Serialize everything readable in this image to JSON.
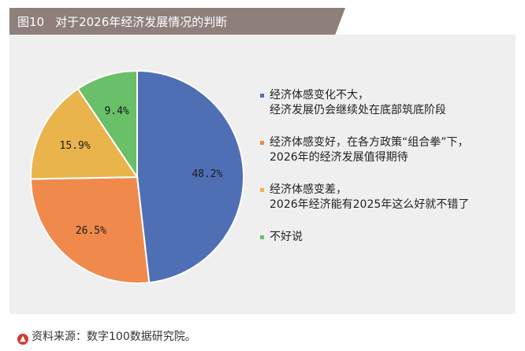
{
  "header": {
    "figure_label": "图10",
    "title": "对于2026年经济发展情况的判断"
  },
  "chart_data": {
    "type": "pie",
    "slices": [
      {
        "value": 48.2,
        "label": "48.2%",
        "color": "#4f6fb5",
        "legend_lines": [
          "经济体感变化不大，",
          "经济发展仍会继续处在底部筑底阶段"
        ]
      },
      {
        "value": 26.5,
        "label": "26.5%",
        "color": "#ef8a4c",
        "legend_lines": [
          "经济体感变好，在各方政策“组合拳”下，",
          "2026年的经济发展值得期待"
        ]
      },
      {
        "value": 15.9,
        "label": "15.9%",
        "color": "#e9b44c",
        "legend_lines": [
          "经济体感变差，",
          "2026年经济能有2025年这么好就不错了"
        ]
      },
      {
        "value": 9.4,
        "label": "9.4%",
        "color": "#6abf69",
        "legend_lines": [
          "不好说"
        ]
      }
    ],
    "legend_position": "right"
  },
  "footer": {
    "icon": "up-arrow-icon",
    "source_text": "资料来源：数字100数据研究院。"
  }
}
